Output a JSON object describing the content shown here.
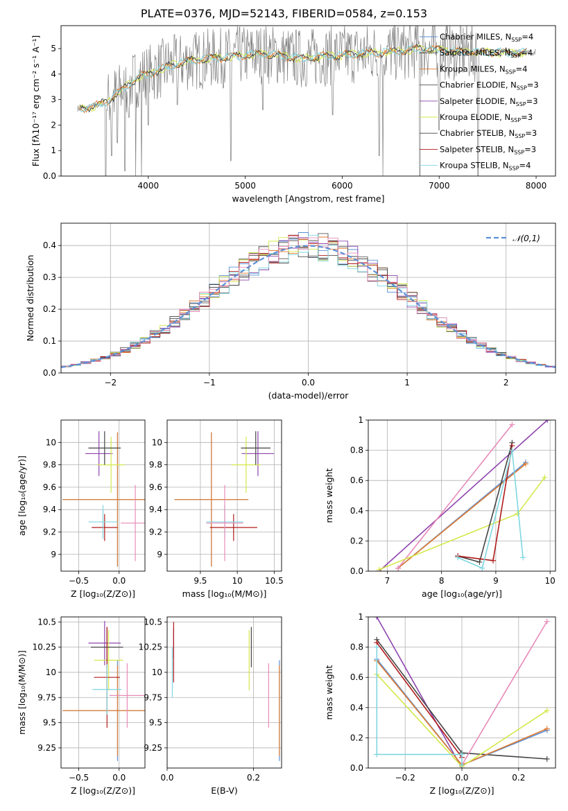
{
  "figure_title": "PLATE=0376, MJD=52143, FIBERID=0584, z=0.153",
  "colors": {
    "data": "#808080",
    "chabrier_miles": "#5b8fd6",
    "salpeter_miles": "#3a3a3a",
    "kroupa_miles": "#e07a2e",
    "chabrier_elodie": "#555555",
    "salpeter_elodie": "#8e44ad",
    "kroupa_elodie": "#d4e84a",
    "chabrier_stelib": "#444444",
    "salpeter_stelib": "#b01a1a",
    "kroupa_stelib": "#7fd6e0",
    "pink": "#e88ab8",
    "grid": "#b0b0b0"
  },
  "chart_data": [
    {
      "id": "spectrum",
      "type": "line",
      "xlabel": "wavelength [Angstrom, rest frame]",
      "ylabel": "Flux [fλ10⁻¹⁷ erg cm⁻² s⁻¹ A⁻¹]",
      "xlim": [
        3100,
        8200
      ],
      "ylim": [
        0,
        5.9
      ],
      "xticks": [
        4000,
        5000,
        6000,
        7000,
        8000
      ],
      "yticks": [
        0,
        1,
        2,
        3,
        4,
        5
      ],
      "grid": false,
      "legend": "right",
      "legend_entries": [
        {
          "label": "Chabrier MILES, N",
          "sub": "SSP",
          "tail": "=4",
          "color": "chabrier_miles"
        },
        {
          "label": "Salpeter MILES, N",
          "sub": "SSP",
          "tail": "=4",
          "color": "salpeter_miles"
        },
        {
          "label": "Kroupa MILES, N",
          "sub": "SSP",
          "tail": "=4",
          "color": "kroupa_miles"
        },
        {
          "label": "Chabrier ELODIE, N",
          "sub": "SSP",
          "tail": "=3",
          "color": "chabrier_elodie"
        },
        {
          "label": "Salpeter ELODIE, N",
          "sub": "SSP",
          "tail": "=3",
          "color": "salpeter_elodie"
        },
        {
          "label": "Kroupa ELODIE, N",
          "sub": "SSP",
          "tail": "=3",
          "color": "kroupa_elodie"
        },
        {
          "label": "Chabrier STELIB, N",
          "sub": "SSP",
          "tail": "=3",
          "color": "chabrier_stelib"
        },
        {
          "label": "Salpeter STELIB, N",
          "sub": "SSP",
          "tail": "=3",
          "color": "salpeter_stelib"
        },
        {
          "label": "Kroupa STELIB, N",
          "sub": "SSP",
          "tail": "=4",
          "color": "kroupa_stelib"
        }
      ],
      "continuum": [
        [
          3300,
          2.65
        ],
        [
          3400,
          2.7
        ],
        [
          3500,
          2.8
        ],
        [
          3600,
          3.0
        ],
        [
          3700,
          3.3
        ],
        [
          3800,
          3.6
        ],
        [
          3900,
          3.9
        ],
        [
          4000,
          4.0
        ],
        [
          4200,
          4.3
        ],
        [
          4400,
          4.5
        ],
        [
          4600,
          4.6
        ],
        [
          4800,
          4.65
        ],
        [
          5000,
          4.75
        ],
        [
          5200,
          4.8
        ],
        [
          5400,
          4.7
        ],
        [
          5600,
          4.6
        ],
        [
          5800,
          4.7
        ],
        [
          6000,
          4.75
        ],
        [
          6200,
          4.8
        ],
        [
          6400,
          4.85
        ],
        [
          6600,
          4.9
        ],
        [
          6800,
          5.0
        ],
        [
          7000,
          4.95
        ],
        [
          7200,
          4.9
        ],
        [
          7400,
          4.85
        ]
      ],
      "noisy_range": [
        3560,
        7400
      ],
      "dips": [
        [
          3560,
          0
        ],
        [
          3620,
          0.8
        ],
        [
          3680,
          1.3
        ],
        [
          3760,
          0.2
        ],
        [
          3800,
          2.3
        ],
        [
          3870,
          0
        ],
        [
          3930,
          0
        ],
        [
          4000,
          2.0
        ],
        [
          4300,
          2.8
        ],
        [
          4850,
          0.6
        ],
        [
          5180,
          2.6
        ],
        [
          5900,
          2.4
        ],
        [
          6380,
          0.8
        ],
        [
          6420,
          0
        ],
        [
          6800,
          0
        ],
        [
          7000,
          1.8
        ],
        [
          7400,
          0
        ]
      ]
    },
    {
      "id": "residuals",
      "type": "histogram",
      "xlabel": "(data-model)/error",
      "ylabel": "Normed distribution",
      "xlim": [
        -2.5,
        2.5
      ],
      "ylim": [
        0,
        0.47
      ],
      "xticks": [
        -2,
        -1,
        0,
        1,
        2
      ],
      "yticks": [
        0.0,
        0.1,
        0.2,
        0.3,
        0.4
      ],
      "grid": true,
      "legend": "top-right",
      "legend_label": "𝒩(0,1)",
      "bin_width": 0.1
    },
    {
      "id": "age_vs_Z",
      "type": "errorbar",
      "xlabel": "Z [log₁₀(Z/Z⊙)]",
      "ylabel": "age  [log₁₀(age/yr)]",
      "xlim": [
        -0.72,
        0.32
      ],
      "ylim": [
        8.85,
        10.2
      ],
      "xticks": [
        -0.5,
        0.0
      ],
      "yticks": [
        9.0,
        9.2,
        9.4,
        9.6,
        9.8,
        10.0
      ],
      "points": [
        {
          "c": "chabrier_miles",
          "x": -0.02,
          "y": 9.49,
          "ex": 0.68,
          "ey": 0.6
        },
        {
          "c": "kroupa_miles",
          "x": -0.02,
          "y": 9.49,
          "ex": 0.68,
          "ey": 0.6
        },
        {
          "c": "salpeter_elodie",
          "x": -0.25,
          "y": 9.9,
          "ex": 0.17,
          "ey": 0.2
        },
        {
          "c": "kroupa_elodie",
          "x": -0.1,
          "y": 9.8,
          "ex": 0.17,
          "ey": 0.25
        },
        {
          "c": "chabrier_stelib",
          "x": -0.18,
          "y": 9.95,
          "ex": 0.2,
          "ey": 0.15
        },
        {
          "c": "salpeter_stelib",
          "x": -0.18,
          "y": 9.24,
          "ex": 0.16,
          "ey": 0.12
        },
        {
          "c": "kroupa_stelib",
          "x": -0.2,
          "y": 9.29,
          "ex": 0.18,
          "ey": 0.15
        },
        {
          "c": "pink",
          "x": 0.2,
          "y": 9.28,
          "ex": 0.18,
          "ey": 0.34
        }
      ]
    },
    {
      "id": "age_vs_mass",
      "type": "errorbar",
      "xlabel": "mass [log₁₀(M/M⊙)]",
      "ylabel": "",
      "xlim": [
        9.05,
        10.6
      ],
      "ylim": [
        8.85,
        10.2
      ],
      "xticks": [
        9.5,
        10.0,
        10.5
      ],
      "yticks": [
        9.0,
        9.2,
        9.4,
        9.6,
        9.8,
        10.0
      ],
      "points": [
        {
          "c": "chabrier_miles",
          "x": 9.65,
          "y": 9.49,
          "ex": 0.5,
          "ey": 0.6
        },
        {
          "c": "kroupa_miles",
          "x": 9.65,
          "y": 9.49,
          "ex": 0.5,
          "ey": 0.6
        },
        {
          "c": "salpeter_elodie",
          "x": 10.28,
          "y": 9.9,
          "ex": 0.22,
          "ey": 0.2
        },
        {
          "c": "kroupa_elodie",
          "x": 10.12,
          "y": 9.8,
          "ex": 0.2,
          "ey": 0.25
        },
        {
          "c": "chabrier_stelib",
          "x": 10.25,
          "y": 9.95,
          "ex": 0.2,
          "ey": 0.15
        },
        {
          "c": "salpeter_stelib",
          "x": 9.95,
          "y": 9.24,
          "ex": 0.32,
          "ey": 0.12
        },
        {
          "c": "kroupa_stelib",
          "x": 9.83,
          "y": 9.29,
          "ex": 0.25,
          "ey": 0.15
        },
        {
          "c": "pink",
          "x": 9.83,
          "y": 9.28,
          "ex": 0.25,
          "ey": 0.34
        }
      ]
    },
    {
      "id": "weight_vs_age",
      "type": "line",
      "xlabel": "age  [log₁₀(age/yr)]",
      "ylabel": "mass weight",
      "xlim": [
        6.65,
        10.1
      ],
      "ylim": [
        0,
        1.0
      ],
      "xticks": [
        7,
        8,
        9,
        10
      ],
      "yticks": [
        0.0,
        0.2,
        0.4,
        0.6,
        0.8,
        1.0
      ],
      "grid": true,
      "series": [
        {
          "c": "salpeter_elodie",
          "x": [
            6.85,
            9.95
          ],
          "y": [
            0.0,
            1.0
          ]
        },
        {
          "c": "chabrier_miles",
          "x": [
            7.2,
            9.55
          ],
          "y": [
            0.02,
            0.72
          ]
        },
        {
          "c": "kroupa_miles",
          "x": [
            7.2,
            9.55
          ],
          "y": [
            0.02,
            0.71
          ]
        },
        {
          "c": "pink",
          "x": [
            7.2,
            9.3
          ],
          "y": [
            0.02,
            0.97
          ]
        },
        {
          "c": "kroupa_elodie",
          "x": [
            6.85,
            9.4,
            9.9
          ],
          "y": [
            0.01,
            0.38,
            0.62
          ]
        },
        {
          "c": "chabrier_stelib",
          "x": [
            8.3,
            8.7,
            9.3
          ],
          "y": [
            0.1,
            0.06,
            0.85
          ]
        },
        {
          "c": "salpeter_stelib",
          "x": [
            8.3,
            8.95,
            9.3
          ],
          "y": [
            0.1,
            0.07,
            0.83
          ]
        },
        {
          "c": "kroupa_stelib",
          "x": [
            8.3,
            8.75,
            9.3,
            9.5
          ],
          "y": [
            0.09,
            0.02,
            0.8,
            0.09
          ]
        }
      ]
    },
    {
      "id": "mass_vs_Z",
      "type": "errorbar",
      "xlabel": "Z [log₁₀(Z/Z⊙)]",
      "ylabel": "mass [log₁₀(M/M⊙)]",
      "xlim": [
        -0.72,
        0.32
      ],
      "ylim": [
        9.05,
        10.55
      ],
      "xticks": [
        -0.5,
        0.0
      ],
      "yticks": [
        9.25,
        9.5,
        9.75,
        10.0,
        10.25,
        10.5
      ],
      "points": [
        {
          "c": "chabrier_miles",
          "x": -0.02,
          "y": 9.62,
          "ex": 0.68,
          "ey": 0.5
        },
        {
          "c": "kroupa_miles",
          "x": -0.02,
          "y": 9.62,
          "ex": 0.68,
          "ey": 0.45
        },
        {
          "c": "salpeter_elodie",
          "x": -0.18,
          "y": 10.29,
          "ex": 0.2,
          "ey": 0.22
        },
        {
          "c": "kroupa_elodie",
          "x": -0.13,
          "y": 10.12,
          "ex": 0.18,
          "ey": 0.3
        },
        {
          "c": "chabrier_stelib",
          "x": -0.15,
          "y": 10.25,
          "ex": 0.2,
          "ey": 0.2
        },
        {
          "c": "salpeter_stelib",
          "x": -0.15,
          "y": 9.95,
          "ex": 0.16,
          "ey": 0.5
        },
        {
          "c": "kroupa_stelib",
          "x": -0.15,
          "y": 9.83,
          "ex": 0.18,
          "ey": 0.25
        },
        {
          "c": "pink",
          "x": 0.1,
          "y": 9.77,
          "ex": 0.22,
          "ey": 0.32
        }
      ]
    },
    {
      "id": "mass_vs_ebv",
      "type": "errorbar",
      "xlabel": "E(B-V)",
      "ylabel": "",
      "xlim": [
        0.0,
        0.265
      ],
      "ylim": [
        9.05,
        10.55
      ],
      "xticks": [
        0.0,
        0.2
      ],
      "yticks": [
        9.25,
        9.5,
        9.75,
        10.0,
        10.25,
        10.5
      ],
      "points": [
        {
          "c": "chabrier_miles",
          "x": 0.26,
          "y": 9.62,
          "ey": 0.5
        },
        {
          "c": "kroupa_miles",
          "x": 0.26,
          "y": 9.62,
          "ey": 0.45
        },
        {
          "c": "salpeter_elodie",
          "x": 0.015,
          "y": 10.29,
          "ey": 0.15
        },
        {
          "c": "kroupa_elodie",
          "x": 0.19,
          "y": 10.12,
          "ey": 0.3
        },
        {
          "c": "chabrier_stelib",
          "x": 0.195,
          "y": 10.25,
          "ey": 0.2
        },
        {
          "c": "salpeter_stelib",
          "x": 0.015,
          "y": 10.2,
          "ey": 0.3
        },
        {
          "c": "kroupa_stelib",
          "x": 0.012,
          "y": 10.0,
          "ey": 0.25
        },
        {
          "c": "pink",
          "x": 0.235,
          "y": 9.77,
          "ey": 0.32
        }
      ]
    },
    {
      "id": "weight_vs_Z",
      "type": "line",
      "xlabel": "Z [log₁₀(Z/Z⊙)]",
      "ylabel": "mass weight",
      "xlim": [
        -0.33,
        0.33
      ],
      "ylim": [
        0,
        1.0
      ],
      "xticks": [
        -0.2,
        0.0,
        0.2
      ],
      "yticks": [
        0.0,
        0.2,
        0.4,
        0.6,
        0.8,
        1.0
      ],
      "grid": true,
      "series": [
        {
          "c": "salpeter_elodie",
          "x": [
            -0.3,
            0.0
          ],
          "y": [
            1.0,
            0.0
          ]
        },
        {
          "c": "chabrier_stelib",
          "x": [
            -0.3,
            0.0,
            0.3
          ],
          "y": [
            0.85,
            0.1,
            0.06
          ]
        },
        {
          "c": "salpeter_stelib",
          "x": [
            -0.3,
            0.0
          ],
          "y": [
            0.83,
            0.07
          ]
        },
        {
          "c": "chabrier_miles",
          "x": [
            -0.3,
            0.0,
            0.3
          ],
          "y": [
            0.72,
            0.02,
            0.25
          ]
        },
        {
          "c": "kroupa_miles",
          "x": [
            -0.3,
            0.0,
            0.3
          ],
          "y": [
            0.71,
            0.02,
            0.26
          ]
        },
        {
          "c": "kroupa_elodie",
          "x": [
            -0.3,
            0.0,
            0.3
          ],
          "y": [
            0.62,
            0.01,
            0.38
          ]
        },
        {
          "c": "pink",
          "x": [
            0.0,
            0.3
          ],
          "y": [
            0.02,
            0.97
          ]
        },
        {
          "c": "kroupa_stelib",
          "x": [
            -0.3,
            -0.3,
            0.0,
            0.0
          ],
          "y": [
            0.8,
            0.09,
            0.09,
            0.02
          ]
        }
      ]
    }
  ]
}
